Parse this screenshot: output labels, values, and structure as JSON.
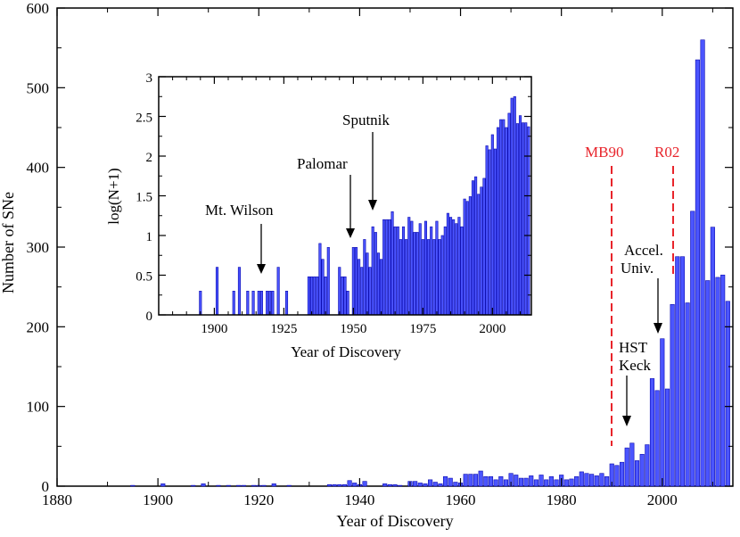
{
  "colors": {
    "bar_fill": "#4b55ff",
    "bar_stroke": "#0a0ab0",
    "marker_red": "#e8242b",
    "axis": "#000000"
  },
  "chart_data": [
    {
      "type": "bar",
      "xlabel": "Year of Discovery",
      "ylabel": "Number of SNe",
      "xlim": [
        1880,
        2014
      ],
      "ylim": [
        0,
        600
      ],
      "xticks": [
        1880,
        1900,
        1920,
        1940,
        1960,
        1980,
        2000
      ],
      "yticks": [
        0,
        100,
        200,
        300,
        400,
        500,
        600
      ],
      "x": [
        1895,
        1901,
        1907,
        1909,
        1912,
        1914,
        1916,
        1917,
        1919,
        1920,
        1921,
        1923,
        1926,
        1934,
        1935,
        1936,
        1937,
        1938,
        1939,
        1940,
        1941,
        1945,
        1946,
        1947,
        1948,
        1950,
        1951,
        1952,
        1953,
        1954,
        1955,
        1956,
        1957,
        1958,
        1959,
        1960,
        1961,
        1962,
        1963,
        1964,
        1965,
        1966,
        1967,
        1968,
        1969,
        1970,
        1971,
        1972,
        1973,
        1974,
        1975,
        1976,
        1977,
        1978,
        1979,
        1980,
        1981,
        1982,
        1983,
        1984,
        1985,
        1986,
        1987,
        1988,
        1989,
        1990,
        1991,
        1992,
        1993,
        1994,
        1995,
        1996,
        1997,
        1998,
        1999,
        2000,
        2001,
        2002,
        2003,
        2004,
        2005,
        2006,
        2007,
        2008,
        2009,
        2010,
        2011,
        2012,
        2013
      ],
      "values": [
        1,
        3,
        1,
        3,
        1,
        1,
        1,
        1,
        1,
        1,
        1,
        3,
        1,
        2,
        2,
        2,
        2,
        7,
        4,
        2,
        6,
        3,
        2,
        2,
        1,
        6,
        6,
        4,
        3,
        8,
        5,
        3,
        12,
        10,
        5,
        4,
        15,
        15,
        15,
        19,
        12,
        12,
        8,
        12,
        8,
        16,
        14,
        10,
        10,
        13,
        8,
        14,
        8,
        12,
        8,
        14,
        8,
        9,
        12,
        18,
        16,
        15,
        13,
        16,
        12,
        28,
        26,
        30,
        48,
        54,
        32,
        40,
        52,
        135,
        120,
        185,
        122,
        228,
        288,
        288,
        230,
        345,
        535,
        560,
        258,
        325,
        262,
        265,
        232
      ],
      "annotations": [
        "MB90",
        "R02",
        "HST",
        "Keck",
        "Accel.",
        "Univ."
      ],
      "markers": [
        {
          "label": "MB90",
          "x": 1990
        },
        {
          "label": "R02",
          "x": 2002
        }
      ]
    },
    {
      "type": "bar",
      "xlabel": "Year of Discovery",
      "ylabel": "log(N+1)",
      "xlim": [
        1880,
        2014
      ],
      "ylim": [
        0,
        3
      ],
      "xticks": [
        1900,
        1925,
        1950,
        1975,
        2000
      ],
      "yticks": [
        0,
        0.5,
        1,
        1.5,
        2,
        2.5,
        3
      ],
      "ytick_labels": [
        "0",
        "0.5",
        "1",
        "1.5",
        "2",
        "2.5",
        "3"
      ],
      "x": [
        1895,
        1901,
        1907,
        1909,
        1912,
        1914,
        1916,
        1917,
        1919,
        1920,
        1921,
        1923,
        1926,
        1934,
        1935,
        1936,
        1937,
        1938,
        1939,
        1940,
        1941,
        1945,
        1946,
        1947,
        1948,
        1950,
        1951,
        1952,
        1953,
        1954,
        1955,
        1956,
        1957,
        1958,
        1959,
        1960,
        1961,
        1962,
        1963,
        1964,
        1965,
        1966,
        1967,
        1968,
        1969,
        1970,
        1971,
        1972,
        1973,
        1974,
        1975,
        1976,
        1977,
        1978,
        1979,
        1980,
        1981,
        1982,
        1983,
        1984,
        1985,
        1986,
        1987,
        1988,
        1989,
        1990,
        1991,
        1992,
        1993,
        1994,
        1995,
        1996,
        1997,
        1998,
        1999,
        2000,
        2001,
        2002,
        2003,
        2004,
        2005,
        2006,
        2007,
        2008,
        2009,
        2010,
        2011,
        2012,
        2013
      ],
      "values": [
        0.3,
        0.6,
        0.3,
        0.6,
        0.3,
        0.3,
        0.3,
        0.3,
        0.3,
        0.3,
        0.3,
        0.6,
        0.3,
        0.48,
        0.48,
        0.48,
        0.48,
        0.9,
        0.7,
        0.48,
        0.85,
        0.6,
        0.48,
        0.48,
        0.3,
        0.85,
        0.85,
        0.7,
        0.6,
        0.95,
        0.78,
        0.6,
        1.11,
        1.04,
        0.78,
        0.7,
        1.2,
        1.2,
        1.2,
        1.3,
        1.11,
        1.11,
        0.95,
        1.11,
        0.95,
        1.23,
        1.18,
        1.04,
        1.04,
        1.15,
        0.95,
        1.18,
        0.95,
        1.11,
        0.95,
        1.18,
        0.95,
        1.0,
        1.11,
        1.28,
        1.23,
        1.2,
        1.15,
        1.23,
        1.11,
        1.46,
        1.43,
        1.49,
        1.69,
        1.74,
        1.52,
        1.61,
        1.72,
        2.13,
        2.08,
        2.27,
        2.09,
        2.36,
        2.46,
        2.46,
        2.36,
        2.54,
        2.73,
        2.75,
        2.41,
        2.51,
        2.42,
        2.42,
        2.37
      ],
      "annotations": [
        "Mt. Wilson",
        "Palomar",
        "Sputnik"
      ]
    }
  ]
}
